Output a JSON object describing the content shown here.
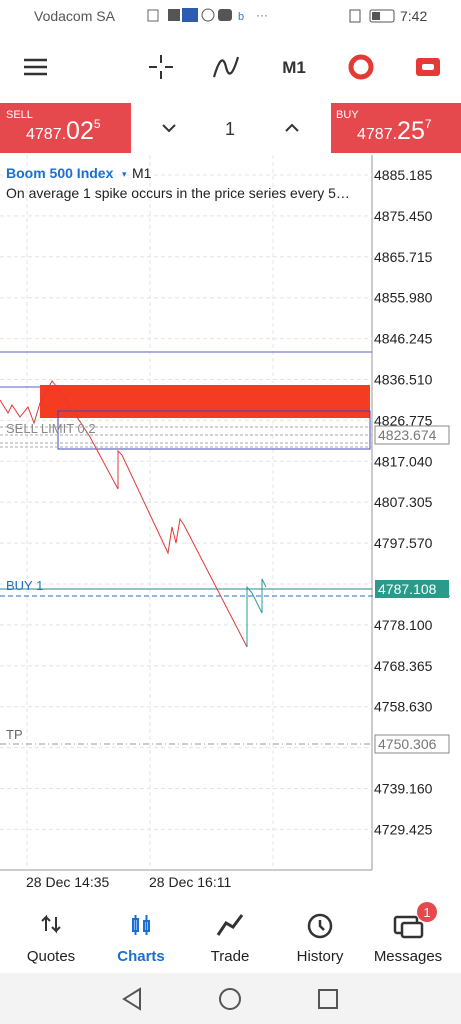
{
  "status_bar": {
    "carrier": "Vodacom SA",
    "time": "7:42"
  },
  "toolbar": {
    "timeframe": "M1"
  },
  "trade_panel": {
    "sell": {
      "label": "SELL",
      "price_main": "4787.",
      "price_big": "02",
      "price_sup": "5"
    },
    "volume": "1",
    "buy": {
      "label": "BUY",
      "price_main": "4787.",
      "price_big": "25",
      "price_sup": "7"
    }
  },
  "chart": {
    "symbol": "Boom 500 Index",
    "timeframe": "M1",
    "description": "On average 1 spike occurs in the price series every 5…",
    "price_labels": [
      "4885.185",
      "4875.450",
      "4865.715",
      "4855.980",
      "4846.245",
      "4836.510",
      "4826.775",
      "4817.040",
      "4807.305",
      "4797.570",
      "4778.100",
      "4768.365",
      "4758.630",
      "4739.160",
      "4729.425"
    ],
    "order_lines": {
      "sell_limit": "SELL LIMIT 0.2",
      "buy": "BUY 1",
      "tp": "TP"
    },
    "markers": {
      "sell_limit": "4823.674",
      "buy": "4787.108",
      "tp": "4750.306"
    },
    "time_labels": [
      "28 Dec 14:35",
      "28 Dec 16:11"
    ]
  },
  "nav": {
    "items": [
      "Quotes",
      "Charts",
      "Trade",
      "History",
      "Messages"
    ],
    "badge": "1"
  }
}
